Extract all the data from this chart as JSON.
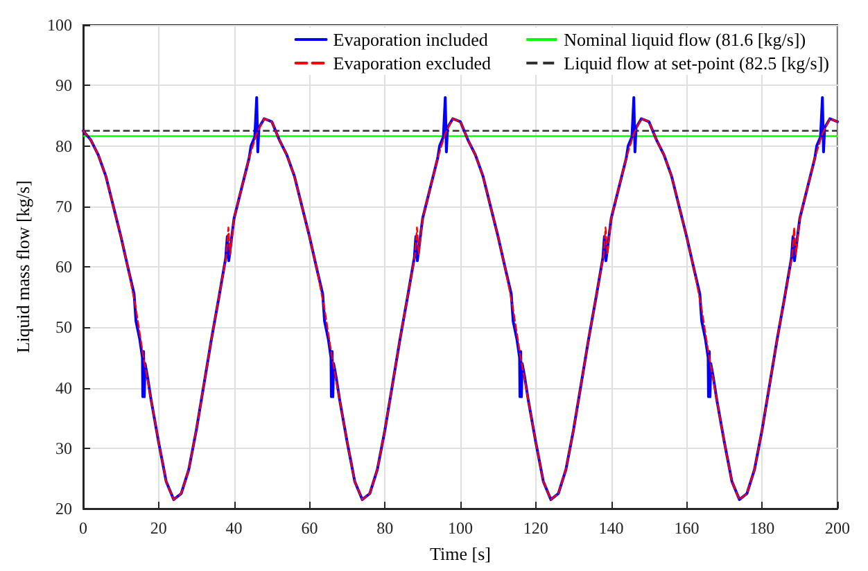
{
  "chart_data": {
    "type": "line",
    "xlabel": "Time [s]",
    "ylabel": "Liquid mass flow [kg/s]",
    "xlim": [
      0,
      200
    ],
    "xticks": [
      0,
      20,
      40,
      60,
      80,
      100,
      120,
      140,
      160,
      180,
      200
    ],
    "ylim": [
      20,
      100
    ],
    "yticks": [
      20,
      30,
      40,
      50,
      60,
      70,
      80,
      90,
      100
    ],
    "grid": true,
    "legend": "top right",
    "marker": "none",
    "series": [
      {
        "name": "Evaporation included",
        "color": "#0000ff",
        "line_style": "solid",
        "x": [
          0,
          2,
          4,
          6,
          8,
          10,
          12,
          13.5,
          14,
          15,
          15.7,
          15.8,
          16,
          16.2,
          16.4,
          17,
          18,
          20,
          22,
          24,
          26,
          28,
          30,
          32,
          34,
          36,
          37.8,
          38.2,
          38.6,
          39,
          40,
          42,
          44,
          44.5,
          45.5,
          46,
          46.3,
          46.6,
          48,
          50,
          52,
          54,
          56,
          58,
          60,
          62,
          63.5,
          64,
          65,
          65.7,
          65.8,
          66,
          66.2,
          66.4,
          67,
          68,
          70,
          72,
          74,
          76,
          78,
          80,
          82,
          84,
          86,
          87.8,
          88.2,
          88.6,
          89,
          90,
          92,
          94,
          94.5,
          95.5,
          96,
          96.3,
          96.6,
          98,
          100,
          102,
          104,
          106,
          108,
          110,
          112,
          113.5,
          114,
          115,
          115.7,
          115.8,
          116,
          116.2,
          116.4,
          117,
          118,
          120,
          122,
          124,
          126,
          128,
          130,
          132,
          134,
          136,
          137.8,
          138.2,
          138.6,
          139,
          140,
          142,
          144,
          144.5,
          145.5,
          146,
          146.3,
          146.6,
          148,
          150,
          152,
          154,
          156,
          158,
          160,
          162,
          163.5,
          164,
          165,
          165.7,
          165.8,
          166,
          166.2,
          166.4,
          167,
          168,
          170,
          172,
          174,
          176,
          178,
          180,
          182,
          184,
          186,
          187.8,
          188.2,
          188.6,
          189,
          190,
          192,
          194,
          194.5,
          195.5,
          196,
          196.3,
          196.6,
          198,
          200
        ],
        "values": [
          82.5,
          81,
          78.5,
          75,
          70,
          65,
          59.5,
          55.5,
          51,
          48,
          45,
          38.5,
          46,
          38.5,
          44,
          42,
          38,
          31,
          24.5,
          21.5,
          22.5,
          26.5,
          33,
          40.5,
          48,
          55,
          61.5,
          65,
          61,
          63,
          68,
          73,
          78,
          80,
          81.5,
          88,
          79,
          83,
          84.5,
          84,
          81,
          78.5,
          75,
          70,
          65,
          59.5,
          55.5,
          51,
          48,
          45,
          38.5,
          46,
          38.5,
          44,
          42,
          38,
          31,
          24.5,
          21.5,
          22.5,
          26.5,
          33,
          40.5,
          48,
          55,
          61.5,
          65,
          61,
          63,
          68,
          73,
          78,
          80,
          81.5,
          88,
          79,
          83,
          84.5,
          84,
          81,
          78.5,
          75,
          70,
          65,
          59.5,
          55.5,
          51,
          48,
          45,
          38.5,
          46,
          38.5,
          44,
          42,
          38,
          31,
          24.5,
          21.5,
          22.5,
          26.5,
          33,
          40.5,
          48,
          55,
          61.5,
          65,
          61,
          63,
          68,
          73,
          78,
          80,
          81.5,
          88,
          79,
          83,
          84.5,
          84,
          81,
          78.5,
          75,
          70,
          65,
          59.5,
          55.5,
          51,
          48,
          45,
          38.5,
          46,
          38.5,
          44,
          42,
          38,
          31,
          24.5,
          21.5,
          22.5,
          26.5,
          33,
          40.5,
          48,
          55,
          61.5,
          65,
          61,
          63,
          68,
          73,
          78,
          80,
          81.5,
          88,
          79,
          83,
          84.5,
          84
        ]
      },
      {
        "name": "Evaporation excluded",
        "color": "#ff0000",
        "line_style": "dashed",
        "x": [
          0,
          2,
          4,
          6,
          8,
          10,
          12,
          14,
          16,
          18,
          20,
          22,
          24,
          26,
          28,
          30,
          32,
          34,
          36,
          38,
          38.5,
          39,
          40,
          42,
          44,
          46,
          48,
          50,
          52,
          54,
          56,
          58,
          60,
          62,
          64,
          66,
          68,
          70,
          72,
          74,
          76,
          78,
          80,
          82,
          84,
          86,
          88,
          88.5,
          89,
          90,
          92,
          94,
          96,
          98,
          100,
          102,
          104,
          106,
          108,
          110,
          112,
          114,
          116,
          118,
          120,
          122,
          124,
          126,
          128,
          130,
          132,
          134,
          136,
          138,
          138.5,
          139,
          140,
          142,
          144,
          146,
          148,
          150,
          152,
          154,
          156,
          158,
          160,
          162,
          164,
          166,
          168,
          170,
          172,
          174,
          176,
          178,
          180,
          182,
          184,
          186,
          188,
          188.5,
          189,
          190,
          192,
          194,
          196,
          198,
          200
        ],
        "values": [
          82.5,
          81,
          78.5,
          75,
          70,
          65,
          59.5,
          53,
          45,
          38,
          31,
          24.5,
          21.5,
          22.5,
          26.5,
          33,
          40.5,
          48,
          55,
          62,
          66.5,
          62,
          68,
          73,
          78,
          82,
          84.5,
          84,
          81,
          78.5,
          75,
          70,
          65,
          59.5,
          53,
          45,
          38,
          31,
          24.5,
          21.5,
          22.5,
          26.5,
          33,
          40.5,
          48,
          55,
          62,
          66.5,
          62,
          68,
          73,
          78,
          82,
          84.5,
          84,
          81,
          78.5,
          75,
          70,
          65,
          59.5,
          53,
          45,
          38,
          31,
          24.5,
          21.5,
          22.5,
          26.5,
          33,
          40.5,
          48,
          55,
          62,
          66.5,
          62,
          68,
          73,
          78,
          82,
          84.5,
          84,
          81,
          78.5,
          75,
          70,
          65,
          59.5,
          53,
          45,
          38,
          31,
          24.5,
          21.5,
          22.5,
          26.5,
          33,
          40.5,
          48,
          55,
          62,
          66.5,
          62,
          68,
          73,
          78,
          82,
          84.5,
          84
        ]
      }
    ],
    "ref_lines": [
      {
        "axis": "y",
        "value": 81.6,
        "label": "Nominal liquid flow (81.6 [kg/s])",
        "color": "#00ff00",
        "line_style": "solid"
      },
      {
        "axis": "y",
        "value": 82.5,
        "label": "Liquid flow at set-point (82.5 [kg/s])",
        "color": "#333333",
        "line_style": "dashed"
      }
    ]
  }
}
